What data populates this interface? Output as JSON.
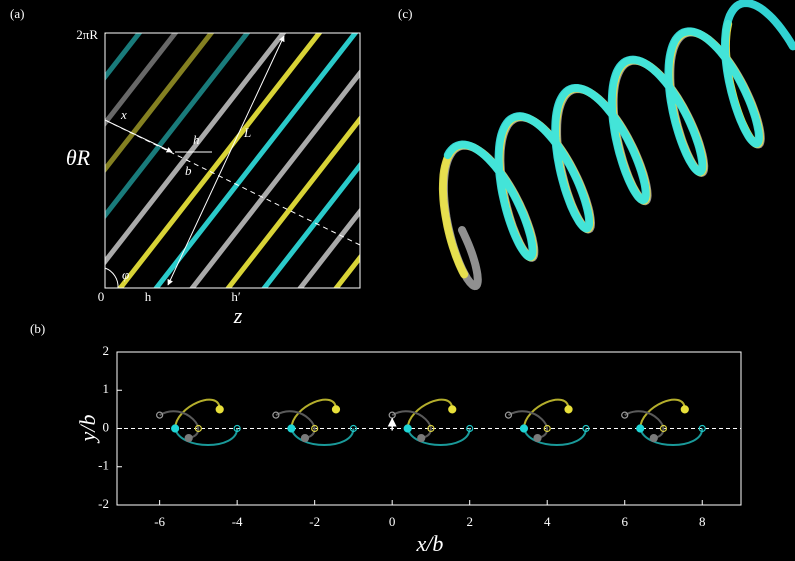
{
  "panel_a": {
    "label": "(a)",
    "y_top": "2πR",
    "y_label": "θR",
    "origin": "0",
    "x_label": "z",
    "x_ticks": [
      "h",
      "h′"
    ],
    "annotations": {
      "x": "x",
      "h": "h",
      "b": "b",
      "L": "L",
      "phi": "φ"
    }
  },
  "panel_c": {
    "label": "(c)"
  },
  "chart_data": {
    "type": "scatter",
    "label": "(b)",
    "x_label": "x/b",
    "y_label": "y/b",
    "xlim": [
      -7.1,
      9
    ],
    "ylim": [
      -2,
      2
    ],
    "xticks": [
      -6,
      -4,
      -2,
      0,
      2,
      4,
      6,
      8
    ],
    "yticks": [
      -2,
      -1,
      0,
      1,
      2
    ],
    "series": [
      {
        "color": "#9a9a9a",
        "marker": "open",
        "x": [
          -6,
          -3,
          0,
          3,
          6
        ],
        "y": [
          0.35,
          0.35,
          0.35,
          0.35,
          0.35
        ]
      },
      {
        "color": "#e8e03a",
        "marker": "filled",
        "x": [
          -4.45,
          -1.45,
          1.55,
          4.55,
          7.55
        ],
        "y": [
          0.5,
          0.5,
          0.5,
          0.5,
          0.5
        ]
      },
      {
        "color": "#7a7a7a",
        "marker": "filled",
        "x": [
          -5.25,
          -2.25,
          0.75,
          3.75,
          6.75
        ],
        "y": [
          -0.25,
          -0.25,
          -0.25,
          -0.25,
          -0.25
        ]
      },
      {
        "color": "#1fd6d6",
        "marker": "filled",
        "x": [
          -5.6,
          -2.6,
          0.4,
          3.4,
          6.4
        ],
        "y": [
          0,
          0,
          0,
          0,
          0
        ]
      },
      {
        "color": "#d8d040",
        "marker": "open",
        "x": [
          -5,
          -2,
          1,
          4,
          7
        ],
        "y": [
          0,
          0,
          0,
          0,
          0
        ]
      },
      {
        "color": "#1fc6c6",
        "marker": "open",
        "x": [
          -4,
          -1,
          2,
          5,
          8
        ],
        "y": [
          0,
          0,
          0,
          0,
          0
        ]
      }
    ]
  }
}
